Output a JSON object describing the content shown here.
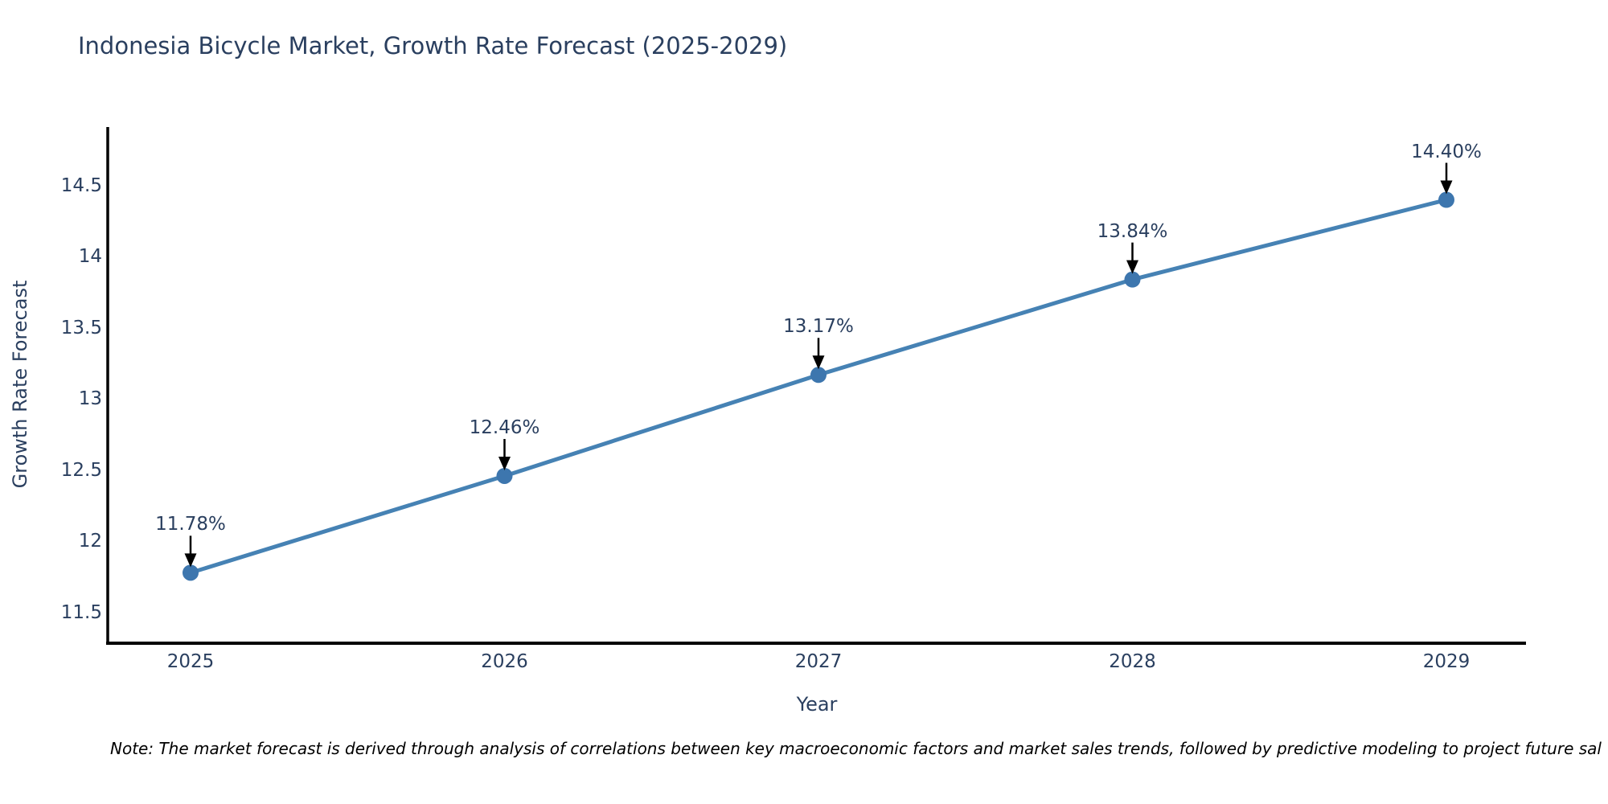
{
  "title": "Indonesia Bicycle Market, Growth Rate Forecast (2025-2029)",
  "note": "Note: The market forecast is derived through analysis of correlations between key macroeconomic factors and market sales trends, followed by predictive modeling to project future sal",
  "colors": {
    "line": "#4682B4",
    "marker": "#3D76AE",
    "axis": "#000000",
    "arrow": "#000000",
    "text": "#2a3f5f",
    "note_text": "#000000"
  },
  "chart_data": {
    "type": "line",
    "title": "Indonesia Bicycle Market, Growth Rate Forecast (2025-2029)",
    "x": [
      2025,
      2026,
      2027,
      2028,
      2029
    ],
    "series": [
      {
        "name": "Growth Rate Forecast",
        "values": [
          11.78,
          12.46,
          13.17,
          13.84,
          14.4
        ]
      }
    ],
    "point_labels": [
      "11.78%",
      "12.46%",
      "13.17%",
      "13.84%",
      "14.40%"
    ],
    "xlabel": "Year",
    "ylabel": "Growth Rate Forecast",
    "ylim": [
      11.285,
      14.9
    ],
    "yticks": [
      11.5,
      12,
      12.5,
      13,
      13.5,
      14,
      14.5
    ],
    "grid": false,
    "legend": "none",
    "annotations": "black down-arrows from labels to markers"
  }
}
